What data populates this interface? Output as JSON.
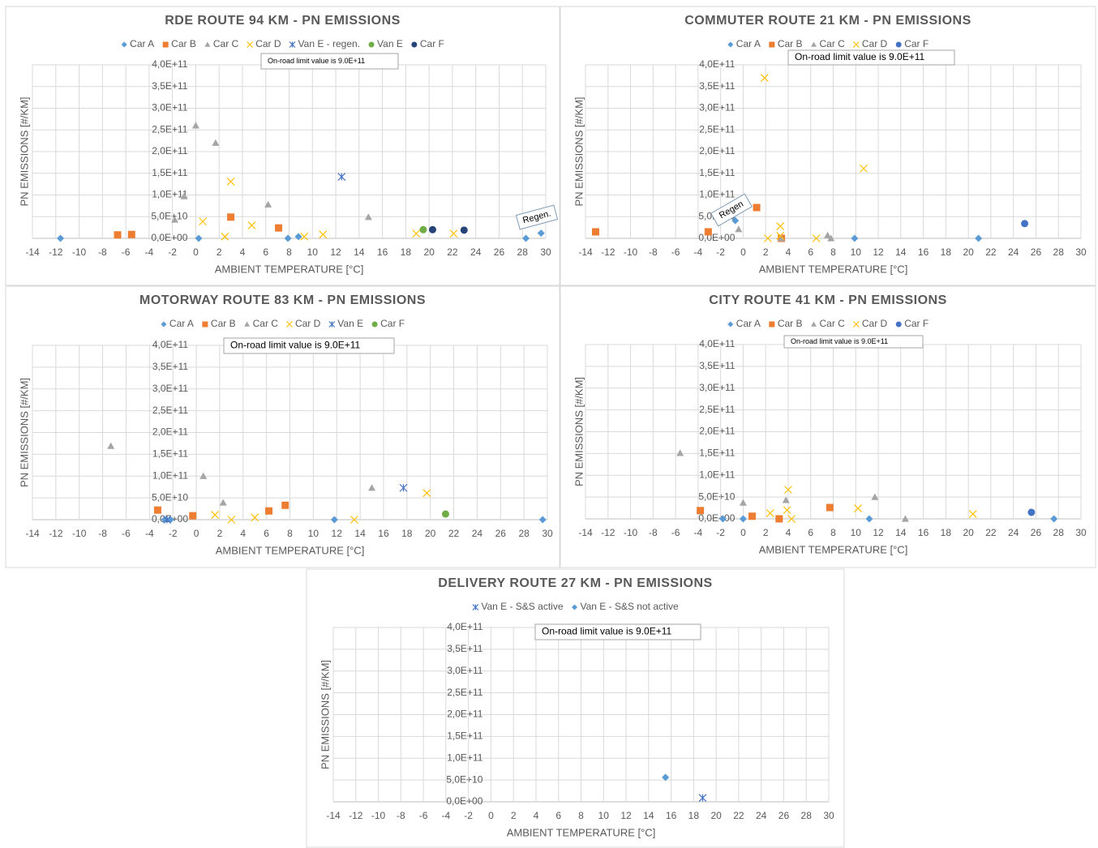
{
  "chart_data": [
    {
      "type": "scatter",
      "title": "RDE ROUTE 94 KM - PN EMISSIONS",
      "xlabel": "AMBIENT TEMPERATURE [°C]",
      "ylabel": "PN EMISSIONS [#/KM]",
      "annotations": [
        "On-road limit value is 9.0E+11",
        "Regen."
      ],
      "xlim": [
        -14,
        30
      ],
      "xticks": [
        -14,
        -12,
        -10,
        -8,
        -6,
        -4,
        -2,
        0,
        2,
        4,
        6,
        8,
        10,
        12,
        14,
        16,
        18,
        20,
        22,
        24,
        26,
        28,
        30
      ],
      "ylim": [
        0,
        400000000000
      ],
      "yticks": [
        {
          "value": 0,
          "label": "0,0E+00"
        },
        {
          "value": 50000000000,
          "label": "5,0E+10"
        },
        {
          "value": 100000000000,
          "label": "1,0E+11"
        },
        {
          "value": 150000000000,
          "label": "1,5E+11"
        },
        {
          "value": 200000000000,
          "label": "2,0E+11"
        },
        {
          "value": 250000000000,
          "label": "2,5E+11"
        },
        {
          "value": 300000000000,
          "label": "3,0E+11"
        },
        {
          "value": 350000000000,
          "label": "3,5E+11"
        },
        {
          "value": 400000000000,
          "label": "4,0E+11"
        }
      ],
      "grid": true,
      "series": [
        {
          "name": "Car A",
          "color": "#5b9bd5",
          "marker": "diamond",
          "x": [
            -11.6,
            0.25,
            7.9,
            8.8,
            28.3,
            29.6
          ],
          "values": [
            0,
            0,
            0,
            4000000000,
            0,
            12000000000
          ]
        },
        {
          "name": "Car B",
          "color": "#ed7d31",
          "marker": "square",
          "x": [
            -6.7,
            -5.5,
            3.0,
            7.1
          ],
          "values": [
            8000000000,
            9000000000,
            49000000000,
            24000000000
          ]
        },
        {
          "name": "Car C",
          "color": "#a5a5a5",
          "marker": "triangle",
          "x": [
            -1.8,
            -1.0,
            0.0,
            1.7,
            6.2,
            14.8
          ],
          "values": [
            43000000000,
            97000000000,
            260000000000,
            220000000000,
            78000000000,
            49000000000
          ]
        },
        {
          "name": "Car D",
          "color": "#ffc000",
          "marker": "x",
          "x": [
            0.6,
            2.5,
            3.0,
            4.8,
            9.3,
            10.9,
            18.9,
            22.1
          ],
          "values": [
            39000000000,
            4000000000,
            131000000000,
            30000000000,
            4000000000,
            9000000000,
            11000000000,
            11000000000
          ]
        },
        {
          "name": "Van E - regen.",
          "color": "#4472c4",
          "marker": "asterisk",
          "x": [
            12.5
          ],
          "values": [
            142000000000
          ]
        },
        {
          "name": "Van E",
          "color": "#70ad47",
          "marker": "circle",
          "x": [
            19.5
          ],
          "values": [
            20000000000
          ]
        },
        {
          "name": "Car F",
          "color": "#264478",
          "marker": "circle",
          "x": [
            20.3,
            23.0
          ],
          "values": [
            20000000000,
            19000000000
          ]
        }
      ]
    },
    {
      "type": "scatter",
      "title": "COMMUTER ROUTE 21 KM - PN EMISSIONS",
      "xlabel": "AMBIENT TEMPERATURE [°C]",
      "ylabel": "PN EMISSIONS [#/KM]",
      "annotations": [
        "On-road limit value is 9.0E+11",
        "Regen"
      ],
      "xlim": [
        -14,
        30
      ],
      "xticks": [
        -14,
        -12,
        -10,
        -8,
        -6,
        -4,
        -2,
        0,
        2,
        4,
        6,
        8,
        10,
        12,
        14,
        16,
        18,
        20,
        22,
        24,
        26,
        28,
        30
      ],
      "ylim": [
        0,
        400000000000
      ],
      "yticks": [
        {
          "value": 0,
          "label": "0,0E+00"
        },
        {
          "value": 50000000000,
          "label": "5,0E+10"
        },
        {
          "value": 100000000000,
          "label": "1,0E+11"
        },
        {
          "value": 150000000000,
          "label": "1,5E+11"
        },
        {
          "value": 200000000000,
          "label": "2,0E+11"
        },
        {
          "value": 250000000000,
          "label": "2,5E+11"
        },
        {
          "value": 300000000000,
          "label": "3,0E+11"
        },
        {
          "value": 350000000000,
          "label": "3,5E+11"
        },
        {
          "value": 400000000000,
          "label": "4,0E+11"
        }
      ],
      "grid": true,
      "series": [
        {
          "name": "Car A",
          "color": "#5b9bd5",
          "marker": "diamond",
          "x": [
            -0.7,
            9.9,
            20.9
          ],
          "values": [
            41000000000,
            0,
            0
          ]
        },
        {
          "name": "Car B",
          "color": "#ed7d31",
          "marker": "square",
          "x": [
            -13.1,
            -3.1,
            1.2,
            3.4
          ],
          "values": [
            15000000000,
            15000000000,
            71000000000,
            0
          ]
        },
        {
          "name": "Car C",
          "color": "#a5a5a5",
          "marker": "triangle",
          "x": [
            -0.4,
            3.4,
            7.5,
            7.8
          ],
          "values": [
            21000000000,
            0,
            7000000000,
            0
          ]
        },
        {
          "name": "Car D",
          "color": "#ffc000",
          "marker": "x",
          "x": [
            1.9,
            2.2,
            3.3,
            3.3,
            6.5,
            10.7
          ],
          "values": [
            370000000000,
            0,
            28000000000,
            6000000000,
            0,
            161000000000
          ]
        },
        {
          "name": "Car F",
          "color": "#4472c4",
          "marker": "circle",
          "x": [
            25.0
          ],
          "values": [
            34000000000
          ]
        }
      ]
    },
    {
      "type": "scatter",
      "title": "MOTORWAY ROUTE 83 KM - PN EMISSIONS",
      "xlabel": "AMBIENT TEMPERATURE [°C]",
      "ylabel": "PN EMISSIONS [#/KM]",
      "annotations": [
        "On-road limit value is 9.0E+11"
      ],
      "xlim": [
        -14,
        30
      ],
      "xticks": [
        -14,
        -12,
        -10,
        -8,
        -6,
        -4,
        -2,
        0,
        2,
        4,
        6,
        8,
        10,
        12,
        14,
        16,
        18,
        20,
        22,
        24,
        26,
        28,
        30
      ],
      "ylim": [
        0,
        400000000000
      ],
      "yticks": [
        {
          "value": 0,
          "label": "0,0E+00"
        },
        {
          "value": 50000000000,
          "label": "5,0E+10"
        },
        {
          "value": 100000000000,
          "label": "1,0E+11"
        },
        {
          "value": 150000000000,
          "label": "1,5E+11"
        },
        {
          "value": 200000000000,
          "label": "2,0E+11"
        },
        {
          "value": 250000000000,
          "label": "2,5E+11"
        },
        {
          "value": 300000000000,
          "label": "3,0E+11"
        },
        {
          "value": 350000000000,
          "label": "3,5E+11"
        },
        {
          "value": 400000000000,
          "label": "4,0E+11"
        }
      ],
      "grid": true,
      "series": [
        {
          "name": "Car A",
          "color": "#5b9bd5",
          "marker": "diamond",
          "x": [
            -2.7,
            -2.2,
            11.8,
            29.6
          ],
          "values": [
            0,
            0,
            0,
            0
          ]
        },
        {
          "name": "Car B",
          "color": "#ed7d31",
          "marker": "square",
          "x": [
            -3.3,
            -0.3,
            6.2,
            7.6
          ],
          "values": [
            22000000000,
            9000000000,
            20000000000,
            33000000000
          ]
        },
        {
          "name": "Car C",
          "color": "#a5a5a5",
          "marker": "triangle",
          "x": [
            -7.3,
            0.6,
            2.3,
            15.0
          ],
          "values": [
            169000000000,
            100000000000,
            39000000000,
            73000000000
          ]
        },
        {
          "name": "Car D",
          "color": "#ffc000",
          "marker": "x",
          "x": [
            1.6,
            3.0,
            5.0,
            13.5,
            19.7
          ],
          "values": [
            11000000000,
            0,
            5000000000,
            0,
            61000000000
          ]
        },
        {
          "name": "Van E",
          "color": "#4472c4",
          "marker": "asterisk",
          "x": [
            -2.5,
            17.7
          ],
          "values": [
            0,
            73000000000
          ]
        },
        {
          "name": "Car F",
          "color": "#70ad47",
          "marker": "circle",
          "x": [
            21.3
          ],
          "values": [
            13000000000
          ]
        }
      ]
    },
    {
      "type": "scatter",
      "title": "CITY ROUTE 41 KM - PN EMISSIONS",
      "xlabel": "AMBIENT TEMPERATURE [°C]",
      "ylabel": "PN EMISSIONS [#/KM]",
      "annotations": [
        "On-road limit value is 9.0E+11"
      ],
      "xlim": [
        -14,
        30
      ],
      "xticks": [
        -14,
        -12,
        -10,
        -8,
        -6,
        -4,
        -2,
        0,
        2,
        4,
        6,
        8,
        10,
        12,
        14,
        16,
        18,
        20,
        22,
        24,
        26,
        28,
        30
      ],
      "ylim": [
        0,
        400000000000
      ],
      "yticks": [
        {
          "value": 0,
          "label": "0,0E+00"
        },
        {
          "value": 50000000000,
          "label": "5,0E+10"
        },
        {
          "value": 100000000000,
          "label": "1,0E+11"
        },
        {
          "value": 150000000000,
          "label": "1,5E+11"
        },
        {
          "value": 200000000000,
          "label": "2,0E+11"
        },
        {
          "value": 250000000000,
          "label": "2,5E+11"
        },
        {
          "value": 300000000000,
          "label": "3,0E+11"
        },
        {
          "value": 350000000000,
          "label": "3,5E+11"
        },
        {
          "value": 400000000000,
          "label": "4,0E+11"
        }
      ],
      "grid": true,
      "series": [
        {
          "name": "Car A",
          "color": "#5b9bd5",
          "marker": "diamond",
          "x": [
            -1.8,
            0.0,
            11.2,
            27.6
          ],
          "values": [
            0,
            0,
            0,
            0
          ]
        },
        {
          "name": "Car B",
          "color": "#ed7d31",
          "marker": "square",
          "x": [
            -3.8,
            0.8,
            3.2,
            7.7
          ],
          "values": [
            19000000000,
            6000000000,
            0,
            26000000000
          ]
        },
        {
          "name": "Car C",
          "color": "#a5a5a5",
          "marker": "triangle",
          "x": [
            -5.6,
            0.0,
            3.8,
            11.7,
            14.4
          ],
          "values": [
            151000000000,
            37000000000,
            43000000000,
            50000000000,
            0
          ]
        },
        {
          "name": "Car D",
          "color": "#ffc000",
          "marker": "x",
          "x": [
            2.4,
            3.9,
            4.0,
            4.3,
            10.2,
            20.4
          ],
          "values": [
            13000000000,
            20000000000,
            67000000000,
            0,
            24000000000,
            11000000000
          ]
        },
        {
          "name": "Car F",
          "color": "#4472c4",
          "marker": "circle",
          "x": [
            25.6
          ],
          "values": [
            15000000000
          ]
        }
      ]
    },
    {
      "type": "scatter",
      "title": "DELIVERY ROUTE 27 KM - PN EMISSIONS",
      "xlabel": "AMBIENT TEMPERATURE [°C]",
      "ylabel": "PN EMISSIONS [#/KM]",
      "annotations": [
        "On-road limit value is 9.0E+11"
      ],
      "xlim": [
        -14,
        30
      ],
      "xticks": [
        -14,
        -12,
        -10,
        -8,
        -6,
        -4,
        -2,
        0,
        2,
        4,
        6,
        8,
        10,
        12,
        14,
        16,
        18,
        20,
        22,
        24,
        26,
        28,
        30
      ],
      "ylim": [
        0,
        400000000000
      ],
      "yticks": [
        {
          "value": 0,
          "label": "0,0E+00"
        },
        {
          "value": 50000000000,
          "label": "5,0E+10"
        },
        {
          "value": 100000000000,
          "label": "1,0E+11"
        },
        {
          "value": 150000000000,
          "label": "1,5E+11"
        },
        {
          "value": 200000000000,
          "label": "2,0E+11"
        },
        {
          "value": 250000000000,
          "label": "2,5E+11"
        },
        {
          "value": 300000000000,
          "label": "3,0E+11"
        },
        {
          "value": 350000000000,
          "label": "3,5E+11"
        },
        {
          "value": 400000000000,
          "label": "4,0E+11"
        }
      ],
      "grid": true,
      "series": [
        {
          "name": "Van E - S&S active",
          "color": "#4472c4",
          "marker": "asterisk",
          "x": [
            18.8
          ],
          "values": [
            9000000000
          ]
        },
        {
          "name": "Van E - S&S not active",
          "color": "#5b9bd5",
          "marker": "diamond",
          "x": [
            15.5
          ],
          "values": [
            56000000000
          ]
        }
      ]
    }
  ]
}
